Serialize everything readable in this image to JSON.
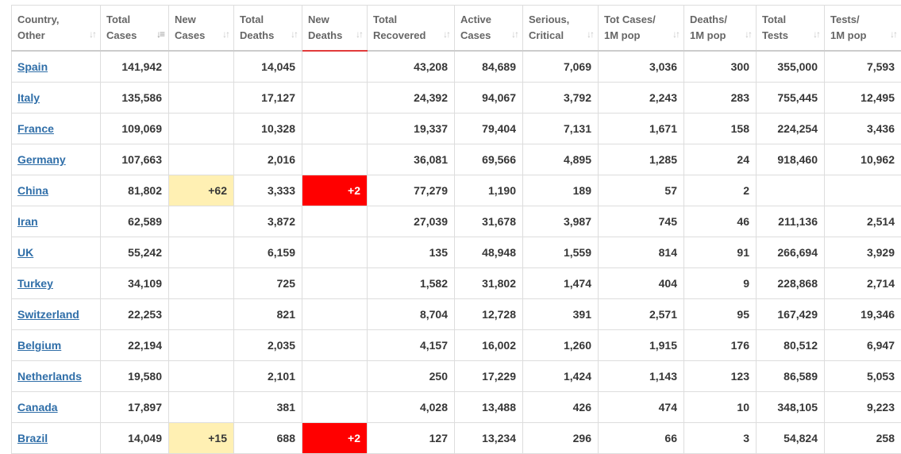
{
  "headers": [
    {
      "line1": "Country,",
      "line2": "Other"
    },
    {
      "line1": "Total",
      "line2": "Cases"
    },
    {
      "line1": "New",
      "line2": "Cases"
    },
    {
      "line1": "Total",
      "line2": "Deaths"
    },
    {
      "line1": "New",
      "line2": "Deaths"
    },
    {
      "line1": "Total",
      "line2": "Recovered"
    },
    {
      "line1": "Active",
      "line2": "Cases"
    },
    {
      "line1": "Serious,",
      "line2": "Critical"
    },
    {
      "line1": "Tot Cases/",
      "line2": "1M pop"
    },
    {
      "line1": "Deaths/",
      "line2": "1M pop"
    },
    {
      "line1": "Total",
      "line2": "Tests"
    },
    {
      "line1": "Tests/",
      "line2": "1M pop"
    }
  ],
  "rows": [
    {
      "country": "Spain",
      "total_cases": "141,942",
      "new_cases": "",
      "total_deaths": "14,045",
      "new_deaths": "",
      "total_recovered": "43,208",
      "active_cases": "84,689",
      "serious_critical": "7,069",
      "tot_cases_1m": "3,036",
      "deaths_1m": "300",
      "total_tests": "355,000",
      "tests_1m": "7,593"
    },
    {
      "country": "Italy",
      "total_cases": "135,586",
      "new_cases": "",
      "total_deaths": "17,127",
      "new_deaths": "",
      "total_recovered": "24,392",
      "active_cases": "94,067",
      "serious_critical": "3,792",
      "tot_cases_1m": "2,243",
      "deaths_1m": "283",
      "total_tests": "755,445",
      "tests_1m": "12,495"
    },
    {
      "country": "France",
      "total_cases": "109,069",
      "new_cases": "",
      "total_deaths": "10,328",
      "new_deaths": "",
      "total_recovered": "19,337",
      "active_cases": "79,404",
      "serious_critical": "7,131",
      "tot_cases_1m": "1,671",
      "deaths_1m": "158",
      "total_tests": "224,254",
      "tests_1m": "3,436"
    },
    {
      "country": "Germany",
      "total_cases": "107,663",
      "new_cases": "",
      "total_deaths": "2,016",
      "new_deaths": "",
      "total_recovered": "36,081",
      "active_cases": "69,566",
      "serious_critical": "4,895",
      "tot_cases_1m": "1,285",
      "deaths_1m": "24",
      "total_tests": "918,460",
      "tests_1m": "10,962"
    },
    {
      "country": "China",
      "total_cases": "81,802",
      "new_cases": "+62",
      "total_deaths": "3,333",
      "new_deaths": "+2",
      "total_recovered": "77,279",
      "active_cases": "1,190",
      "serious_critical": "189",
      "tot_cases_1m": "57",
      "deaths_1m": "2",
      "total_tests": "",
      "tests_1m": ""
    },
    {
      "country": "Iran",
      "total_cases": "62,589",
      "new_cases": "",
      "total_deaths": "3,872",
      "new_deaths": "",
      "total_recovered": "27,039",
      "active_cases": "31,678",
      "serious_critical": "3,987",
      "tot_cases_1m": "745",
      "deaths_1m": "46",
      "total_tests": "211,136",
      "tests_1m": "2,514"
    },
    {
      "country": "UK",
      "total_cases": "55,242",
      "new_cases": "",
      "total_deaths": "6,159",
      "new_deaths": "",
      "total_recovered": "135",
      "active_cases": "48,948",
      "serious_critical": "1,559",
      "tot_cases_1m": "814",
      "deaths_1m": "91",
      "total_tests": "266,694",
      "tests_1m": "3,929"
    },
    {
      "country": "Turkey",
      "total_cases": "34,109",
      "new_cases": "",
      "total_deaths": "725",
      "new_deaths": "",
      "total_recovered": "1,582",
      "active_cases": "31,802",
      "serious_critical": "1,474",
      "tot_cases_1m": "404",
      "deaths_1m": "9",
      "total_tests": "228,868",
      "tests_1m": "2,714"
    },
    {
      "country": "Switzerland",
      "total_cases": "22,253",
      "new_cases": "",
      "total_deaths": "821",
      "new_deaths": "",
      "total_recovered": "8,704",
      "active_cases": "12,728",
      "serious_critical": "391",
      "tot_cases_1m": "2,571",
      "deaths_1m": "95",
      "total_tests": "167,429",
      "tests_1m": "19,346"
    },
    {
      "country": "Belgium",
      "total_cases": "22,194",
      "new_cases": "",
      "total_deaths": "2,035",
      "new_deaths": "",
      "total_recovered": "4,157",
      "active_cases": "16,002",
      "serious_critical": "1,260",
      "tot_cases_1m": "1,915",
      "deaths_1m": "176",
      "total_tests": "80,512",
      "tests_1m": "6,947"
    },
    {
      "country": "Netherlands",
      "total_cases": "19,580",
      "new_cases": "",
      "total_deaths": "2,101",
      "new_deaths": "",
      "total_recovered": "250",
      "active_cases": "17,229",
      "serious_critical": "1,424",
      "tot_cases_1m": "1,143",
      "deaths_1m": "123",
      "total_tests": "86,589",
      "tests_1m": "5,053"
    },
    {
      "country": "Canada",
      "total_cases": "17,897",
      "new_cases": "",
      "total_deaths": "381",
      "new_deaths": "",
      "total_recovered": "4,028",
      "active_cases": "13,488",
      "serious_critical": "426",
      "tot_cases_1m": "474",
      "deaths_1m": "10",
      "total_tests": "348,105",
      "tests_1m": "9,223"
    },
    {
      "country": "Brazil",
      "total_cases": "14,049",
      "new_cases": "+15",
      "total_deaths": "688",
      "new_deaths": "+2",
      "total_recovered": "127",
      "active_cases": "13,234",
      "serious_critical": "296",
      "tot_cases_1m": "66",
      "deaths_1m": "3",
      "total_tests": "54,824",
      "tests_1m": "258"
    }
  ],
  "colors": {
    "link": "#2f6ea8",
    "new_cases_highlight": "#fff0b3",
    "new_deaths_highlight": "#ff0000"
  },
  "icons": {
    "sort": "sort-icon",
    "sort_active": "sort-desc-icon"
  }
}
